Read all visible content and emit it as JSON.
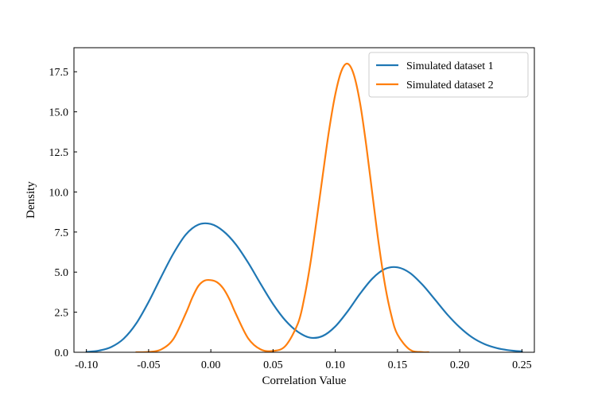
{
  "chart_data": {
    "type": "line",
    "title": "",
    "xlabel": "Correlation Value",
    "ylabel": "Density",
    "xlim": [
      -0.11,
      0.26
    ],
    "ylim": [
      0,
      19
    ],
    "xticks": [
      -0.1,
      -0.05,
      0.0,
      0.05,
      0.1,
      0.15,
      0.2,
      0.25
    ],
    "xtick_labels": [
      "-0.10",
      "-0.05",
      "0.00",
      "0.05",
      "0.10",
      "0.15",
      "0.20",
      "0.25"
    ],
    "yticks": [
      0,
      2.5,
      5,
      7.5,
      10,
      12.5,
      15,
      17.5
    ],
    "ytick_labels": [
      "0.0",
      "2.5",
      "5.0",
      "7.5",
      "10.0",
      "12.5",
      "15.0",
      "17.5"
    ],
    "grid": false,
    "legend_position": "top-right",
    "series": [
      {
        "name": "Simulated dataset 1",
        "color": "#1f77b4",
        "x": [
          -0.1,
          -0.09,
          -0.08,
          -0.07,
          -0.06,
          -0.05,
          -0.04,
          -0.03,
          -0.02,
          -0.01,
          0.0,
          0.01,
          0.02,
          0.03,
          0.04,
          0.05,
          0.06,
          0.07,
          0.08,
          0.09,
          0.1,
          0.11,
          0.12,
          0.13,
          0.14,
          0.15,
          0.16,
          0.17,
          0.18,
          0.19,
          0.2,
          0.21,
          0.22,
          0.23,
          0.24,
          0.25
        ],
        "y": [
          0.02,
          0.1,
          0.33,
          0.85,
          1.79,
          3.14,
          4.69,
          6.17,
          7.35,
          7.96,
          8.0,
          7.56,
          6.74,
          5.59,
          4.27,
          3.01,
          1.98,
          1.27,
          0.91,
          1.02,
          1.61,
          2.56,
          3.66,
          4.61,
          5.2,
          5.3,
          4.95,
          4.22,
          3.3,
          2.36,
          1.56,
          0.93,
          0.51,
          0.26,
          0.12,
          0.05
        ]
      },
      {
        "name": "Simulated dataset 2",
        "color": "#ff7f0e",
        "x": [
          -0.06,
          -0.05,
          -0.04,
          -0.03,
          -0.02,
          -0.015,
          -0.01,
          -0.005,
          0.0,
          0.005,
          0.01,
          0.015,
          0.02,
          0.03,
          0.04,
          0.05,
          0.06,
          0.07,
          0.075,
          0.08,
          0.085,
          0.09,
          0.095,
          0.1,
          0.105,
          0.11,
          0.115,
          0.12,
          0.125,
          0.13,
          0.135,
          0.14,
          0.145,
          0.15,
          0.16,
          0.17,
          0.175
        ],
        "y": [
          0.0,
          0.02,
          0.17,
          0.84,
          2.45,
          3.39,
          4.14,
          4.47,
          4.5,
          4.37,
          3.98,
          3.3,
          2.42,
          0.87,
          0.18,
          0.08,
          0.4,
          1.8,
          3.35,
          5.54,
          8.24,
          11.08,
          13.84,
          16.08,
          17.56,
          18.0,
          17.3,
          15.51,
          12.85,
          9.76,
          6.74,
          4.19,
          2.32,
          1.11,
          0.16,
          0.01,
          0.0
        ]
      }
    ]
  }
}
